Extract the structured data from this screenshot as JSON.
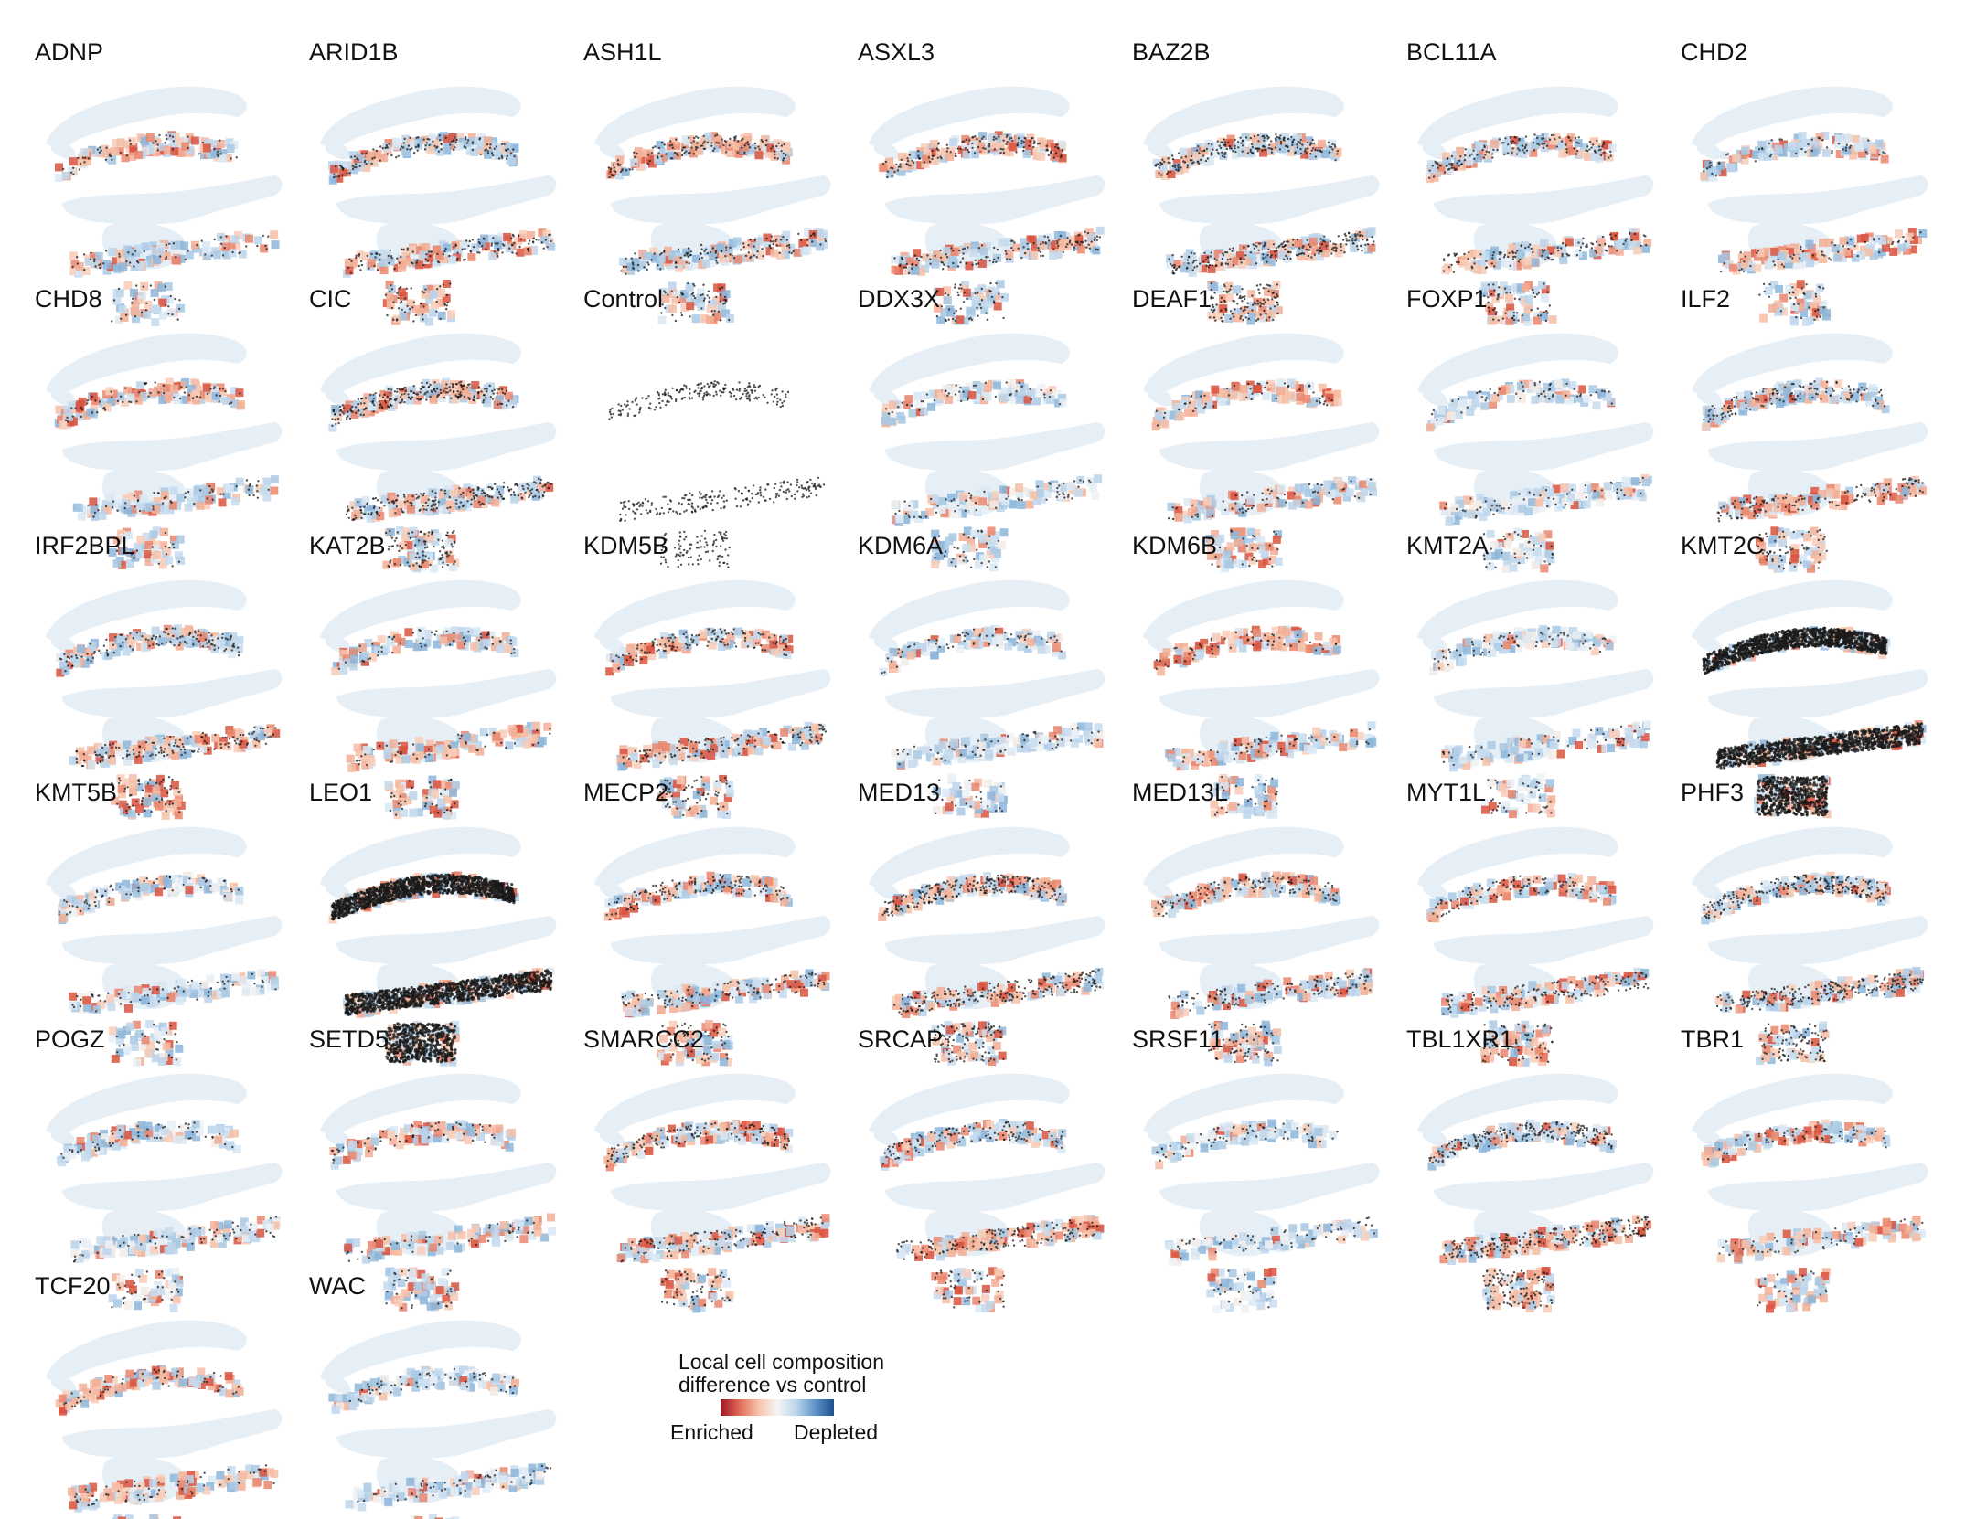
{
  "figure": {
    "panels": [
      {
        "label": "ADNP",
        "style": "sparse",
        "tint": "red-top"
      },
      {
        "label": "ARID1B",
        "style": "medium",
        "tint": "blue-top"
      },
      {
        "label": "ASH1L",
        "style": "medium",
        "tint": "red-top"
      },
      {
        "label": "ASXL3",
        "style": "medium",
        "tint": "red-top"
      },
      {
        "label": "BAZ2B",
        "style": "dense",
        "tint": "mixed"
      },
      {
        "label": "BCL11A",
        "style": "medium",
        "tint": "mixed"
      },
      {
        "label": "CHD2",
        "style": "sparse",
        "tint": "blue-top"
      },
      {
        "label": "CHD8",
        "style": "sparse",
        "tint": "red-top"
      },
      {
        "label": "CIC",
        "style": "dense",
        "tint": "mixed"
      },
      {
        "label": "Control",
        "style": "control",
        "tint": "none"
      },
      {
        "label": "DDX3X",
        "style": "sparse",
        "tint": "light"
      },
      {
        "label": "DEAF1",
        "style": "sparse",
        "tint": "red-top"
      },
      {
        "label": "FOXP1",
        "style": "sparse",
        "tint": "light"
      },
      {
        "label": "ILF2",
        "style": "medium",
        "tint": "red-bottom"
      },
      {
        "label": "IRF2BPL",
        "style": "medium",
        "tint": "red-bottom"
      },
      {
        "label": "KAT2B",
        "style": "sparse",
        "tint": "red-bottom"
      },
      {
        "label": "KDM5B",
        "style": "medium",
        "tint": "mixed"
      },
      {
        "label": "KDM6A",
        "style": "sparse",
        "tint": "light"
      },
      {
        "label": "KDM6B",
        "style": "sparse",
        "tint": "red-top"
      },
      {
        "label": "KMT2A",
        "style": "sparse",
        "tint": "light"
      },
      {
        "label": "KMT2C",
        "style": "black",
        "tint": "blue-top"
      },
      {
        "label": "KMT5B",
        "style": "sparse",
        "tint": "light"
      },
      {
        "label": "LEO1",
        "style": "black",
        "tint": "mixed"
      },
      {
        "label": "MECP2",
        "style": "medium",
        "tint": "mixed"
      },
      {
        "label": "MED13",
        "style": "dense",
        "tint": "mixed"
      },
      {
        "label": "MED13L",
        "style": "medium",
        "tint": "red-top"
      },
      {
        "label": "MYT1L",
        "style": "medium",
        "tint": "mixed"
      },
      {
        "label": "PHF3",
        "style": "dense",
        "tint": "mixed"
      },
      {
        "label": "POGZ",
        "style": "sparse",
        "tint": "light"
      },
      {
        "label": "SETD5",
        "style": "sparse",
        "tint": "mixed"
      },
      {
        "label": "SMARCC2",
        "style": "medium",
        "tint": "mixed"
      },
      {
        "label": "SRCAP",
        "style": "medium",
        "tint": "red-bottom"
      },
      {
        "label": "SRSF11",
        "style": "sparse",
        "tint": "light"
      },
      {
        "label": "TBL1XR1",
        "style": "dense",
        "tint": "red-bottom"
      },
      {
        "label": "TBR1",
        "style": "sparse",
        "tint": "mixed"
      },
      {
        "label": "TCF20",
        "style": "sparse",
        "tint": "red-top"
      },
      {
        "label": "WAC",
        "style": "sparse",
        "tint": "light"
      }
    ]
  },
  "legend": {
    "title_line1": "Local cell composition",
    "title_line2": "difference vs control",
    "left_label": "Enriched",
    "right_label": "Depleted",
    "colors": [
      "#9e1528",
      "#e06a55",
      "#f6c2a8",
      "#f5f5f5",
      "#bdd6ea",
      "#5d95c8",
      "#1e4f8f"
    ]
  }
}
